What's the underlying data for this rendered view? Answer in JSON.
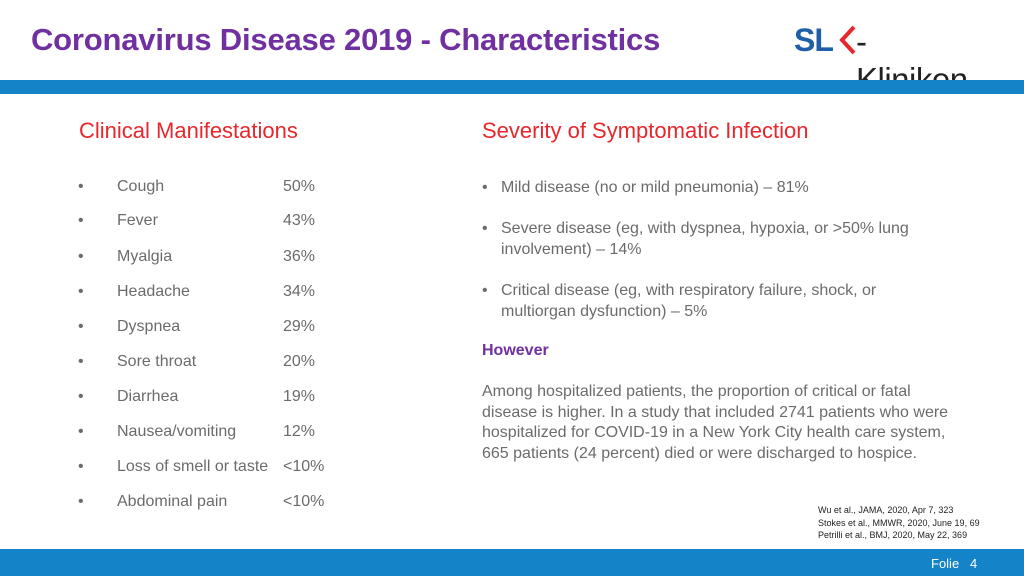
{
  "header": {
    "title": "Coronavirus Disease 2019 - Characteristics",
    "logo": {
      "sl": "SL",
      "kliniken": "-Kliniken",
      "icon": "slk-chevron-icon"
    }
  },
  "left": {
    "heading": "Clinical Manifestations",
    "bullet": "•",
    "items": [
      {
        "name": "Cough",
        "value": "50%"
      },
      {
        "name": "Fever",
        "value": "43%"
      },
      {
        "name": "Myalgia",
        "value": "36%"
      },
      {
        "name": "Headache",
        "value": "34%"
      },
      {
        "name": "Dyspnea",
        "value": "29%"
      },
      {
        "name": "Sore throat",
        "value": "20%"
      },
      {
        "name": "Diarrhea",
        "value": "19%"
      },
      {
        "name": "Nausea/vomiting",
        "value": "12%"
      },
      {
        "name": "Loss of smell or taste",
        "value": "<10%"
      },
      {
        "name": "Abdominal pain",
        "value": "<10%"
      }
    ]
  },
  "right": {
    "heading": "Severity of Symptomatic Infection",
    "bullet": "•",
    "items": [
      "Mild disease (no or mild pneumonia) – 81%",
      "Severe disease (eg, with dyspnea, hypoxia, or >50% lung involvement) – 14%",
      "Critical disease (eg, with respiratory failure, shock, or multiorgan dysfunction) – 5%"
    ],
    "however": "However",
    "paragraph": "Among hospitalized patients, the proportion of critical or fatal disease is higher. In a study that included 2741 patients who were hospitalized for COVID-19 in a New York City health care system, 665 patients (24 percent) died or were discharged to hospice."
  },
  "references": [
    "Wu et al., JAMA, 2020, Apr 7, 323",
    "Stokes et al., MMWR, 2020, June 19, 69",
    "Petrilli et al., BMJ, 2020, May 22, 369"
  ],
  "footer": {
    "label": "Folie",
    "page": "4"
  },
  "colors": {
    "title": "#7030a0",
    "heading": "#e8262b",
    "bar": "#1583c8",
    "text": "#6b6b6b"
  }
}
